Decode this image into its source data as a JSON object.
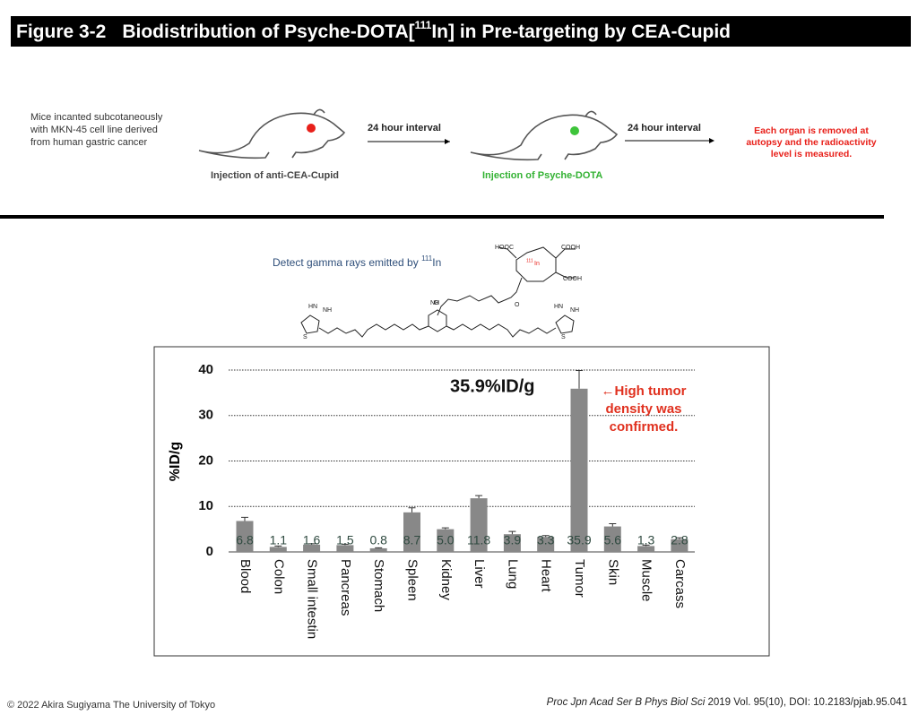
{
  "header": {
    "figure": "Figure 3-2",
    "title_before": "Biodistribution of Psyche-DOTA[",
    "title_sup": "111",
    "title_after": "In] in Pre-targeting by CEA-Cupid"
  },
  "schematic": {
    "mice_note": [
      "Mice incanted subcotaneously",
      "with MKN-45 cell line derived",
      "from human gastric cancer"
    ],
    "step1": "Injection of anti-CEA-Cupid",
    "interval1": "24 hour interval",
    "step2_prefix": "Injection of ",
    "step2_name": "Psyche-DOTA",
    "interval2": "24 hour interval",
    "result": [
      "Each organ is removed at",
      "autopsy and the radioactivity",
      "level is measured."
    ]
  },
  "detection": {
    "text": "Detect gamma rays emitted by ",
    "sup": "111",
    "element": "In"
  },
  "structure": {
    "labels": [
      "HOOC",
      "COOH",
      "COOH",
      "111",
      "In",
      "HN",
      "NH",
      "NH",
      "HN",
      "NH",
      "S",
      "S",
      "O",
      "O"
    ]
  },
  "chart_data": {
    "type": "bar",
    "categories": [
      "Blood",
      "Colon",
      "Small intestin",
      "Pancreas",
      "Stomach",
      "Spleen",
      "Kidney",
      "Liver",
      "Lung",
      "Heart",
      "Tumor",
      "Skin",
      "Muscle",
      "Carcass"
    ],
    "values": [
      6.8,
      1.1,
      1.6,
      1.5,
      0.8,
      8.7,
      5.0,
      11.8,
      3.9,
      3.3,
      35.9,
      5.6,
      1.3,
      2.8
    ],
    "value_labels": [
      "6.8",
      "1.1",
      "1.6",
      "1.5",
      "0.8",
      "8.7",
      "5.0",
      "11.8",
      "3.9",
      "3.3",
      "35.9",
      "5.6",
      "1.3",
      "2.8"
    ],
    "errors": [
      0.8,
      0.2,
      0.2,
      0.2,
      0.1,
      1.0,
      0.3,
      0.6,
      0.6,
      0.3,
      4.0,
      0.6,
      0.2,
      0.3
    ],
    "color": "#888888",
    "ylabel": "%ID/g",
    "ylim": [
      0,
      40
    ],
    "yticks": [
      0,
      10,
      20,
      30,
      40
    ],
    "grid": true,
    "highlight": "35.9%ID/g",
    "annotation": [
      "←High tumor",
      "density was",
      "confirmed."
    ]
  },
  "footer": {
    "copyright": "© 2022 Akira Sugiyama The University of Tokyo",
    "journal": "Proc Jpn Acad Ser B Phys Biol Sci",
    "citation": " 2019 Vol. 95(10), DOI: 10.2183/pjab.95.041"
  }
}
